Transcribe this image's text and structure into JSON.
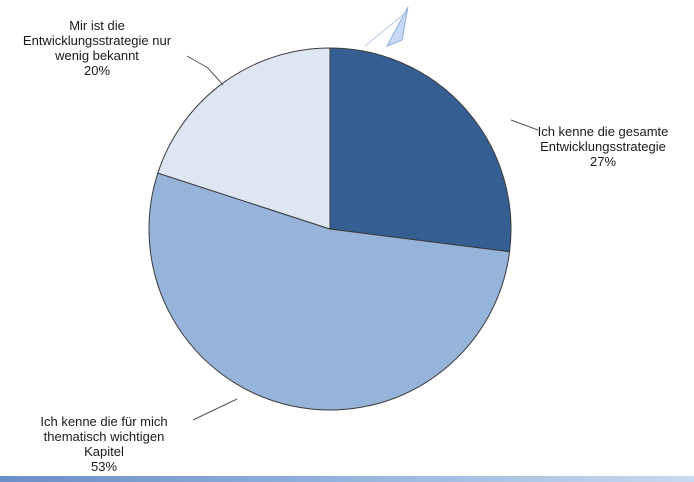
{
  "chart_data": {
    "type": "pie",
    "start_angle_deg": 0,
    "direction": "clockwise",
    "slices": [
      {
        "label_lines": [
          "Ich kenne die gesamte",
          "Entwicklungsstrategie"
        ],
        "percent_label": "27%",
        "value": 27,
        "color": "#355f93"
      },
      {
        "label_lines": [
          "Ich kenne die für mich",
          "thematisch wichtigen",
          "Kapitel"
        ],
        "percent_label": "53%",
        "value": 53,
        "color": "#96b3d9"
      },
      {
        "label_lines": [
          "Mir ist die",
          "Entwicklungsstrategie nur",
          "wenig bekannt"
        ],
        "percent_label": "20%",
        "value": 20,
        "color": "#dde6f2"
      }
    ]
  }
}
